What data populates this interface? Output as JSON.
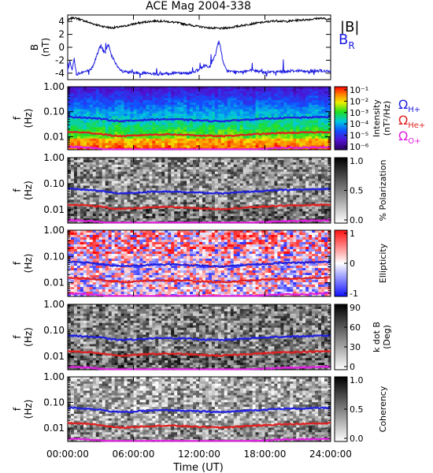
{
  "title": "ACE Mag 2004-338",
  "xlabel": "Time (UT)",
  "x_ticks": [
    "00:00:00",
    "06:00:00",
    "12:00:00",
    "18:00:00",
    "24:00:00"
  ],
  "legend_top": {
    "b_total": "|B|",
    "b_r_main": "B",
    "b_r_sub": "R"
  },
  "gyro_legend": [
    {
      "main": "Ω",
      "sub": "H+",
      "color": "#2020e0"
    },
    {
      "main": "Ω",
      "sub": "He+",
      "color": "#e02020"
    },
    {
      "main": "Ω",
      "sub": "O+",
      "color": "#e020e0"
    }
  ],
  "chart_data": [
    {
      "type": "line",
      "panel": "B",
      "ylabel_main": "B",
      "ylabel_unit": "(nT)",
      "x_range_hours": [
        0,
        24
      ],
      "ylim": [
        -5,
        5
      ],
      "y_ticks": [
        "4",
        "2",
        "0",
        "-2",
        "-4"
      ],
      "series": [
        {
          "name": "|B|",
          "color": "#000000",
          "x": [
            0,
            0.5,
            1,
            1.5,
            2,
            3,
            4,
            5,
            6,
            7,
            8,
            9,
            10,
            11,
            12,
            13,
            14,
            15,
            16,
            17,
            18,
            19,
            20,
            21,
            22,
            23,
            24
          ],
          "y": [
            4.2,
            4.6,
            4.4,
            4.1,
            3.8,
            3.3,
            3.0,
            3.2,
            3.6,
            3.9,
            4.1,
            4.0,
            3.8,
            3.5,
            3.2,
            3.0,
            2.9,
            3.1,
            3.4,
            3.7,
            3.9,
            4.1,
            4.0,
            4.2,
            4.3,
            4.5,
            4.3
          ]
        },
        {
          "name": "B_R",
          "color": "#1a1ae0",
          "x": [
            0,
            0.2,
            0.4,
            0.6,
            0.8,
            1,
            1.5,
            2,
            2.3,
            2.6,
            3,
            3.4,
            3.7,
            4,
            4.5,
            5,
            6,
            7,
            8,
            9,
            10,
            11,
            12,
            12.5,
            13,
            13.5,
            13.8,
            14,
            14.2,
            14.5,
            15,
            16,
            17,
            18,
            19,
            20,
            21,
            22,
            23,
            24
          ],
          "y": [
            -4.0,
            -2.0,
            -3.5,
            -1.8,
            -4.2,
            -4.0,
            -3.8,
            -3.6,
            -3.0,
            -1.5,
            0.3,
            -1.0,
            0.5,
            -1.2,
            -3.0,
            -3.8,
            -3.9,
            -4.0,
            -4.2,
            -4.1,
            -3.9,
            -4.0,
            -3.5,
            -2.8,
            -3.0,
            -1.0,
            1.0,
            -0.5,
            -2.5,
            -3.6,
            -3.8,
            -3.7,
            -3.6,
            -3.9,
            -3.8,
            -3.7,
            -3.6,
            -3.8,
            -3.6,
            -3.8
          ]
        }
      ]
    },
    {
      "type": "heatmap",
      "panel": "intensity",
      "ylabel_main": "f",
      "ylabel_unit": "(Hz)",
      "y_scale": "log",
      "ylim": [
        0.003,
        1.0
      ],
      "y_ticks": [
        "1.00",
        "0.10",
        "0.01"
      ],
      "colorbar": {
        "label": "Intensity",
        "unit": "(nT²/Hz)",
        "ticks": [
          "10⁻¹",
          "10⁻²",
          "10⁻³",
          "10⁻⁴",
          "10⁻⁵",
          "10⁻⁶"
        ],
        "scale": "rainbow"
      }
    },
    {
      "type": "heatmap",
      "panel": "polarization",
      "ylabel_main": "f",
      "ylabel_unit": "(Hz)",
      "y_scale": "log",
      "ylim": [
        0.003,
        1.0
      ],
      "y_ticks": [
        "1.00",
        "0.10",
        "0.01"
      ],
      "colorbar": {
        "label": "% Polarization",
        "ticks": [
          "1.0",
          "0.5",
          "0.0"
        ],
        "scale": "gray"
      }
    },
    {
      "type": "heatmap",
      "panel": "ellipticity",
      "ylabel_main": "f",
      "ylabel_unit": "(Hz)",
      "y_scale": "log",
      "ylim": [
        0.003,
        1.0
      ],
      "y_ticks": [
        "1.00",
        "0.10",
        "0.01"
      ],
      "colorbar": {
        "label": "Ellipticity",
        "ticks": [
          "1",
          "0",
          "-1"
        ],
        "scale": "red-white-blue"
      }
    },
    {
      "type": "heatmap",
      "panel": "k_dot_b",
      "ylabel_main": "f",
      "ylabel_unit": "(Hz)",
      "y_scale": "log",
      "ylim": [
        0.003,
        1.0
      ],
      "y_ticks": [
        "1.00",
        "0.10",
        "0.01"
      ],
      "colorbar": {
        "label": "k dot B",
        "unit": "(Deg)",
        "ticks": [
          "90",
          "60",
          "30",
          "0"
        ],
        "scale": "gray"
      }
    },
    {
      "type": "heatmap",
      "panel": "coherency",
      "ylabel_main": "f",
      "ylabel_unit": "(Hz)",
      "y_scale": "log",
      "ylim": [
        0.003,
        1.0
      ],
      "y_ticks": [
        "1.00",
        "0.10",
        "0.01"
      ],
      "colorbar": {
        "label": "Coherency",
        "ticks": [
          "1.0",
          "0.5",
          "0.0"
        ],
        "scale": "gray"
      }
    }
  ],
  "gyro_lines": {
    "x_hours": [
      0,
      1,
      2,
      3,
      4,
      5,
      6,
      7,
      8,
      9,
      10,
      11,
      12,
      13,
      14,
      15,
      16,
      17,
      18,
      19,
      20,
      21,
      22,
      23,
      24
    ],
    "H+": [
      0.062,
      0.06,
      0.057,
      0.052,
      0.045,
      0.042,
      0.044,
      0.047,
      0.049,
      0.05,
      0.049,
      0.047,
      0.045,
      0.043,
      0.042,
      0.044,
      0.047,
      0.05,
      0.052,
      0.055,
      0.057,
      0.058,
      0.059,
      0.061,
      0.062
    ],
    "He+": [
      0.0155,
      0.015,
      0.0142,
      0.013,
      0.0112,
      0.0105,
      0.011,
      0.0118,
      0.0122,
      0.0125,
      0.0122,
      0.0118,
      0.0112,
      0.0108,
      0.0105,
      0.011,
      0.0118,
      0.0125,
      0.013,
      0.0138,
      0.0142,
      0.0145,
      0.0148,
      0.0152,
      0.0155
    ],
    "O+": [
      0.0039,
      0.0038,
      0.0036,
      0.0033,
      0.0028,
      0.0026,
      0.0028,
      0.003,
      0.0031,
      0.0031,
      0.0031,
      0.003,
      0.0028,
      0.0027,
      0.0026,
      0.0028,
      0.003,
      0.0031,
      0.0033,
      0.0035,
      0.0036,
      0.0036,
      0.0037,
      0.0038,
      0.0039
    ]
  }
}
